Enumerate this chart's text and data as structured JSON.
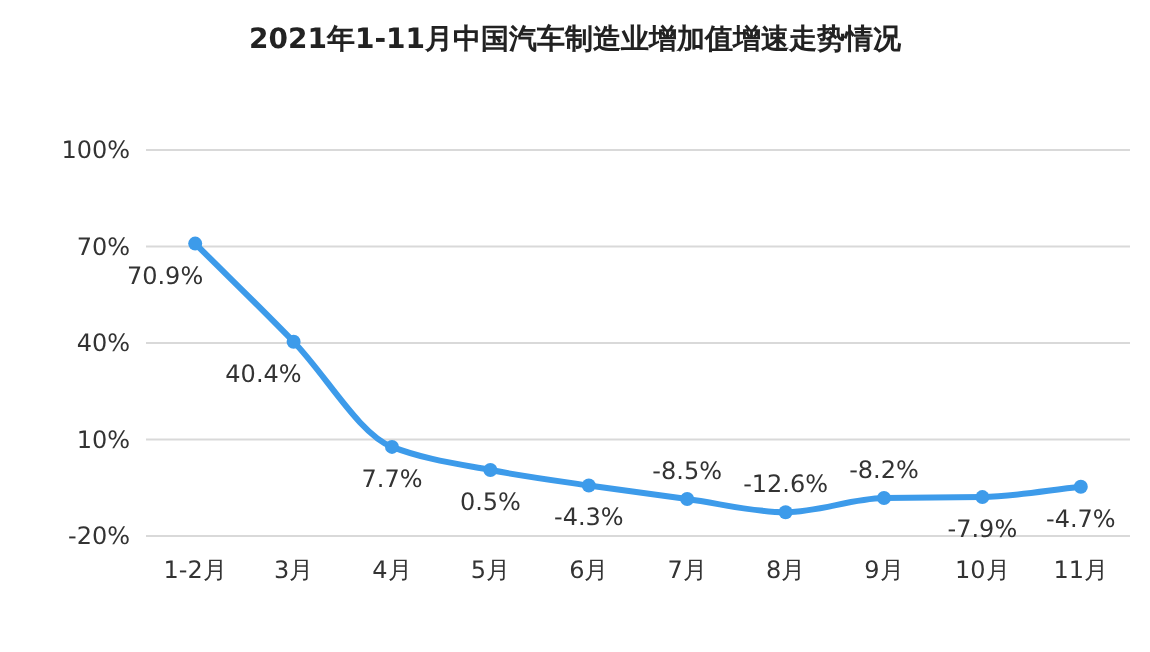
{
  "chart_data": {
    "type": "line",
    "title": "2021年1-11月中国汽车制造业增加值增速走势情况",
    "categories": [
      "1-2月",
      "3月",
      "4月",
      "5月",
      "6月",
      "7月",
      "8月",
      "9月",
      "10月",
      "11月"
    ],
    "series": [
      {
        "color": "#3d9bea",
        "values": [
          70.9,
          40.4,
          7.7,
          0.5,
          -4.3,
          -8.5,
          -12.6,
          -8.2,
          -7.9,
          -4.7
        ],
        "value_labels": [
          "70.9%",
          "40.4%",
          "7.7%",
          "0.5%",
          "-4.3%",
          "-8.5%",
          "-12.6%",
          "-8.2%",
          "-7.9%",
          "-4.7%"
        ]
      }
    ],
    "ylim": [
      -20,
      100
    ],
    "yticks": [
      {
        "value": -20,
        "label": "-20%"
      },
      {
        "value": 10,
        "label": "10%"
      },
      {
        "value": 40,
        "label": "40%"
      },
      {
        "value": 70,
        "label": "70%"
      },
      {
        "value": 100,
        "label": "100%"
      }
    ],
    "grid": "y",
    "marker": "circle",
    "line_style": "solid"
  }
}
